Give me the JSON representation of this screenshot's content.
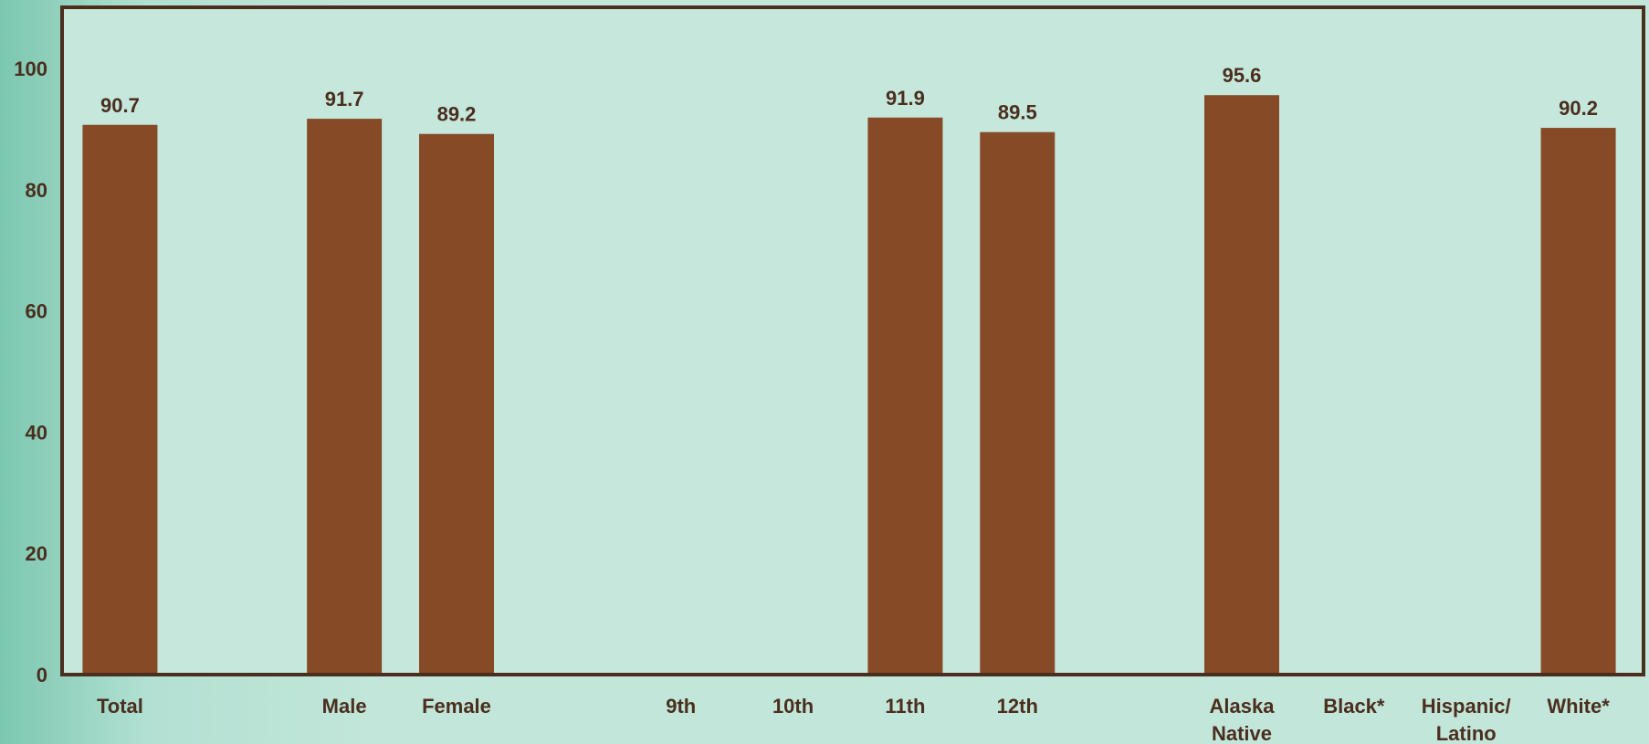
{
  "chart_data": {
    "type": "bar",
    "title": "",
    "xlabel": "",
    "ylabel": "",
    "categories": [
      [
        "Total"
      ],
      [
        ""
      ],
      [
        "Male"
      ],
      [
        "Female"
      ],
      [
        ""
      ],
      [
        "9th"
      ],
      [
        "10th"
      ],
      [
        "11th"
      ],
      [
        "12th"
      ],
      [
        ""
      ],
      [
        "Alaska",
        "Native"
      ],
      [
        "Black*"
      ],
      [
        "Hispanic/",
        "Latino"
      ],
      [
        "White*"
      ]
    ],
    "values": [
      90.7,
      null,
      91.7,
      89.2,
      null,
      null,
      null,
      91.9,
      89.5,
      null,
      95.6,
      null,
      null,
      90.2
    ],
    "data_labels": [
      "90.7",
      "",
      "91.7",
      "89.2",
      "",
      "",
      "",
      "91.9",
      "89.5",
      "",
      "95.6",
      "",
      "",
      "90.2"
    ],
    "ylim": [
      0,
      100
    ],
    "yticks": [
      0,
      20,
      40,
      60,
      80,
      100
    ],
    "grid": false,
    "legend": "none",
    "colors": {
      "bar": "#864a27",
      "plot_background": "#c6e7dc",
      "frame": "#4a2e1e",
      "text": "#4a2e1e"
    }
  }
}
